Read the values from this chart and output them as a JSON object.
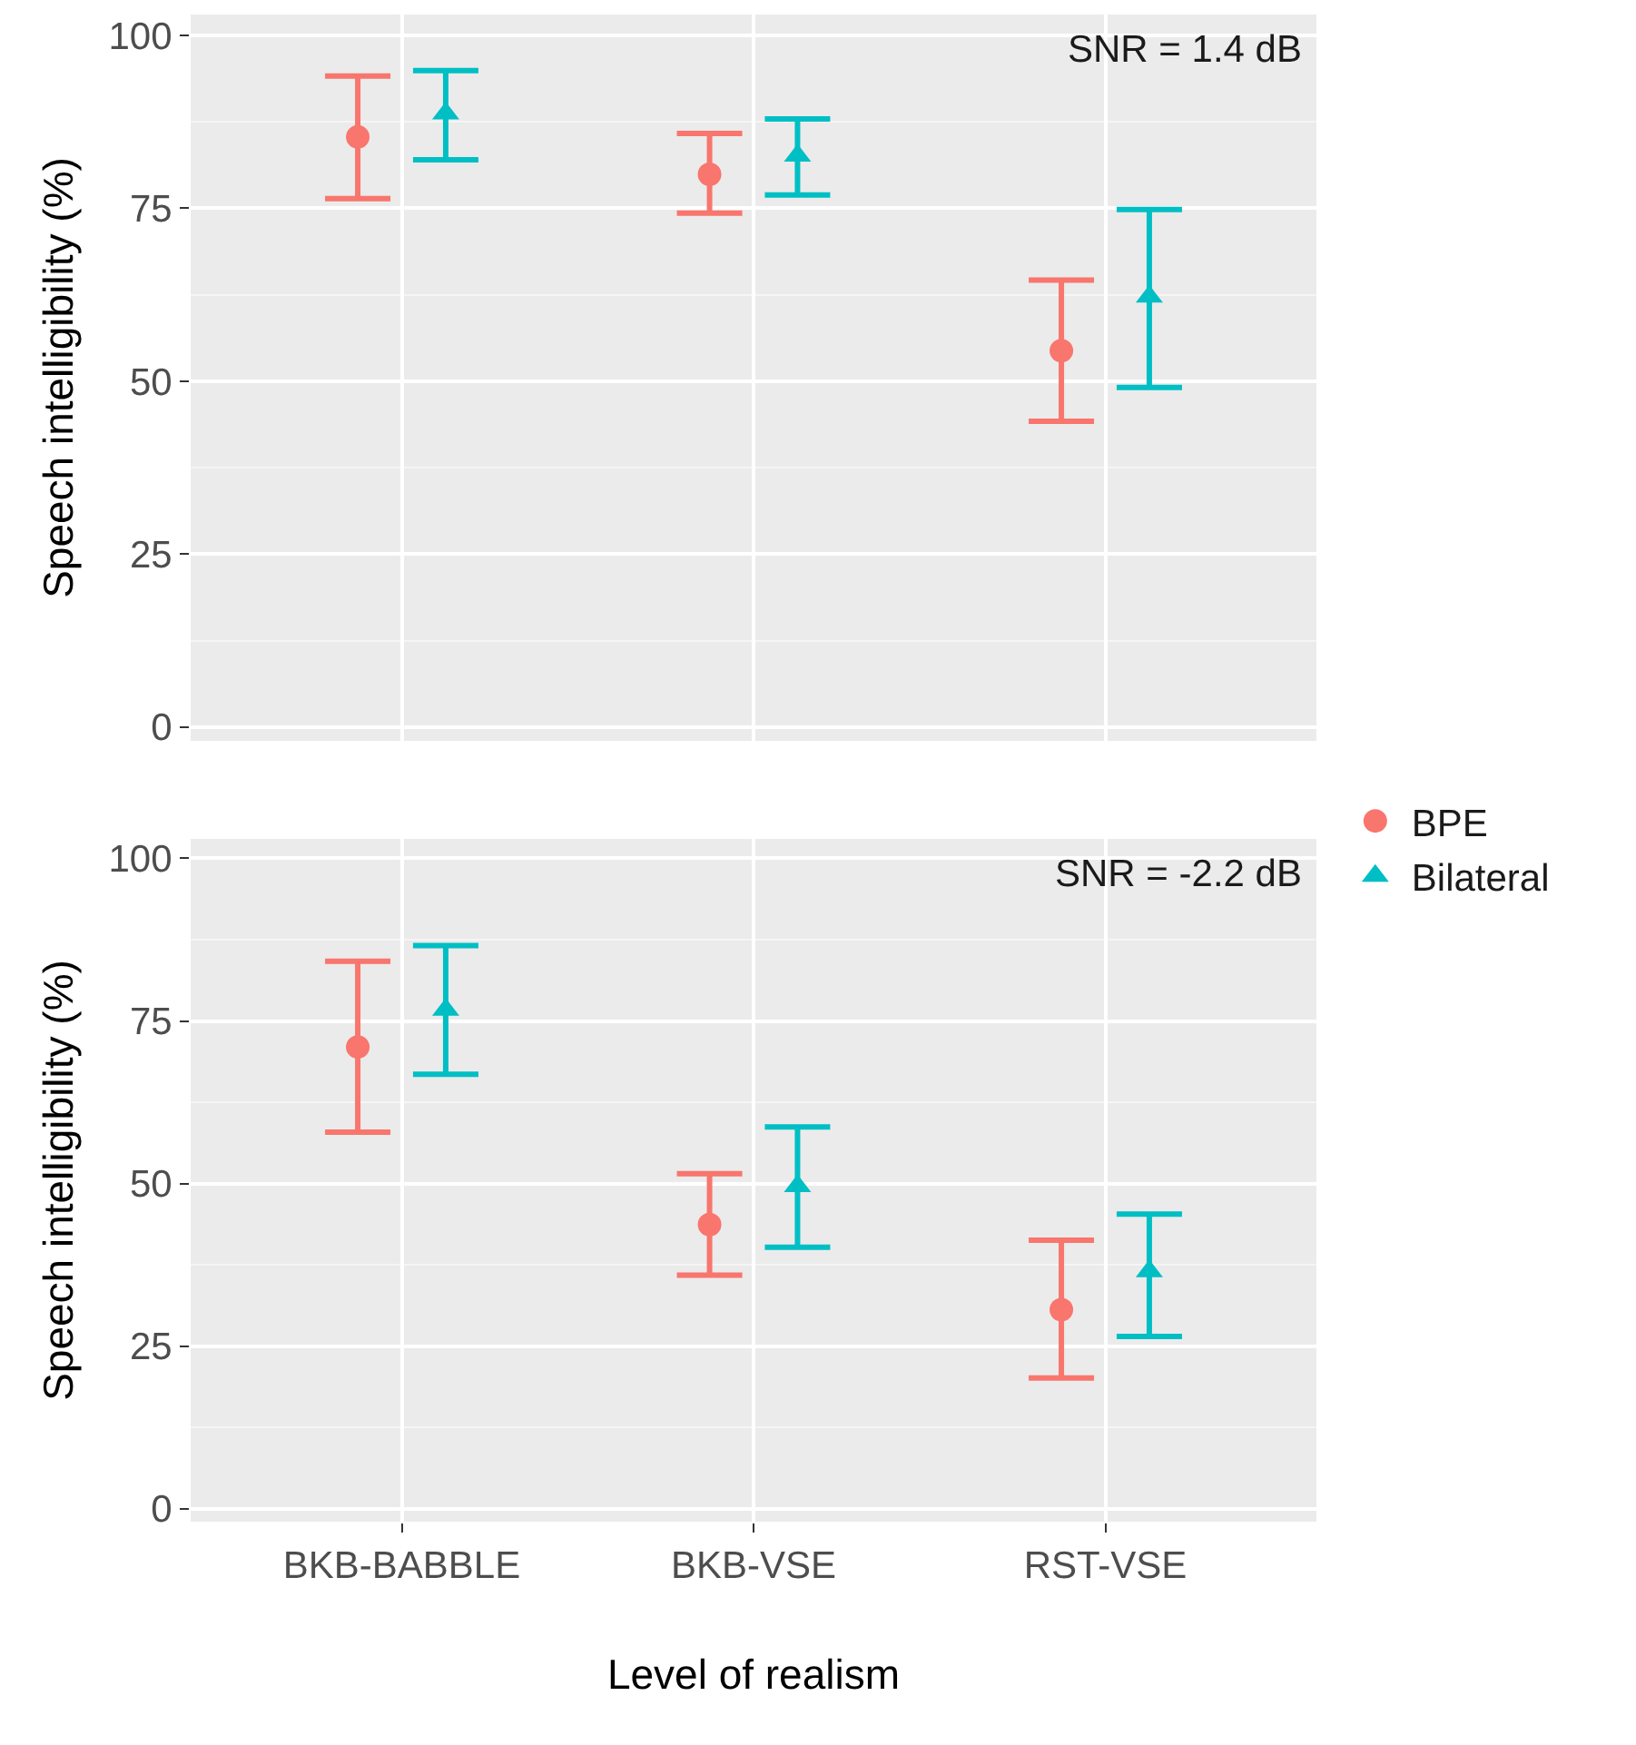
{
  "chart_data": [
    {
      "type": "scatter",
      "categories": [
        null,
        null,
        null
      ],
      "ylabel": "Speech intelligibility (%)",
      "ylim": [
        -2,
        103
      ],
      "yticks": [
        0,
        25,
        50,
        75,
        100
      ],
      "grid": true,
      "legend": false,
      "tick_labels": "y",
      "annotations": [
        "SNR = 1.4 dB"
      ],
      "series": [
        {
          "color": "#f8766d",
          "marker": "circle",
          "values": [
            85.3,
            79.9,
            54.4
          ],
          "errors": [
            [
              76.4,
              94.1
            ],
            [
              74.3,
              85.8
            ],
            [
              44.2,
              64.6
            ]
          ]
        },
        {
          "color": "#00bfc4",
          "marker": "triangle",
          "values": [
            88.7,
            82.6,
            62.2
          ],
          "errors": [
            [
              82.0,
              94.9
            ],
            [
              76.9,
              87.9
            ],
            [
              49.1,
              74.8
            ]
          ]
        }
      ]
    },
    {
      "type": "scatter",
      "categories": [
        "BKB-BABBLE",
        "BKB-VSE",
        "RST-VSE"
      ],
      "xlabel": "Level of realism",
      "ylabel": "Speech intelligibility (%)",
      "ylim": [
        -2,
        103
      ],
      "yticks": [
        0,
        25,
        50,
        75,
        100
      ],
      "grid": true,
      "legend": "right",
      "annotations": [
        "SNR = -2.2 dB"
      ],
      "series": [
        {
          "name": "BPE",
          "color": "#f8766d",
          "marker": "circle",
          "values": [
            71.0,
            43.7,
            30.6
          ],
          "errors": [
            [
              57.9,
              84.2
            ],
            [
              35.9,
              51.5
            ],
            [
              20.1,
              41.3
            ]
          ]
        },
        {
          "name": "Bilateral",
          "color": "#00bfc4",
          "marker": "triangle",
          "values": [
            76.7,
            49.6,
            36.5
          ],
          "errors": [
            [
              66.8,
              86.6
            ],
            [
              40.2,
              58.7
            ],
            [
              26.5,
              45.3
            ]
          ]
        }
      ]
    }
  ]
}
